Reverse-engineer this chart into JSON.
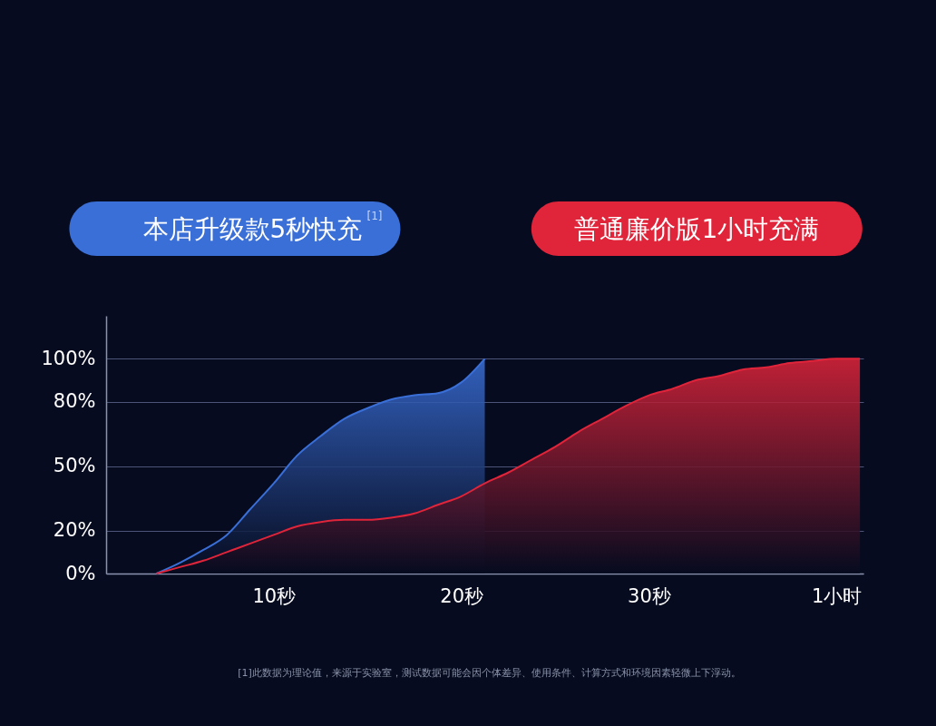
{
  "chart_data": {
    "type": "area",
    "grid": "y",
    "legend": "top",
    "marker": "none",
    "categories": [
      null,
      null,
      null,
      null,
      null,
      null,
      null,
      "10秒",
      null,
      null,
      null,
      null,
      null,
      null,
      null,
      "20秒",
      null,
      null,
      null,
      null,
      null,
      null,
      null,
      "30秒",
      null,
      null,
      null,
      null,
      null,
      null,
      null,
      "1小时",
      null
    ],
    "ylim": [
      0,
      120
    ],
    "yticks": [
      {
        "value": 0,
        "label": "0%"
      },
      {
        "value": 20,
        "label": "20%"
      },
      {
        "value": 50,
        "label": "50%"
      },
      {
        "value": 80,
        "label": "80%"
      },
      {
        "value": 100,
        "label": "100%"
      }
    ],
    "series": [
      {
        "name": "本店升级款5秒快充$^{[1]}$",
        "color": "#3a6fd8",
        "values": [
          null,
          null,
          0,
          5,
          11,
          18,
          30,
          42,
          55,
          64,
          72,
          77,
          81,
          83,
          84,
          89,
          100,
          null,
          null,
          null,
          null,
          null,
          null,
          null,
          null,
          null,
          null,
          null,
          null,
          null,
          null,
          null,
          null
        ]
      },
      {
        "name": "普通廉价版1小时充满",
        "color": "#e0243a",
        "values": [
          null,
          null,
          0,
          3,
          6,
          10,
          14,
          18,
          22,
          24,
          25,
          25,
          26,
          28,
          32,
          36,
          42,
          47,
          53,
          59,
          66,
          72,
          78,
          83,
          86,
          90,
          92,
          95,
          96,
          98,
          99,
          100,
          100
        ]
      }
    ],
    "annotations": [
      "[1]此数据为理论值，来源于实验室，测试数据可能会因个体差异、使用条件、计算方式和环境因素轻微上下浮动。"
    ]
  }
}
